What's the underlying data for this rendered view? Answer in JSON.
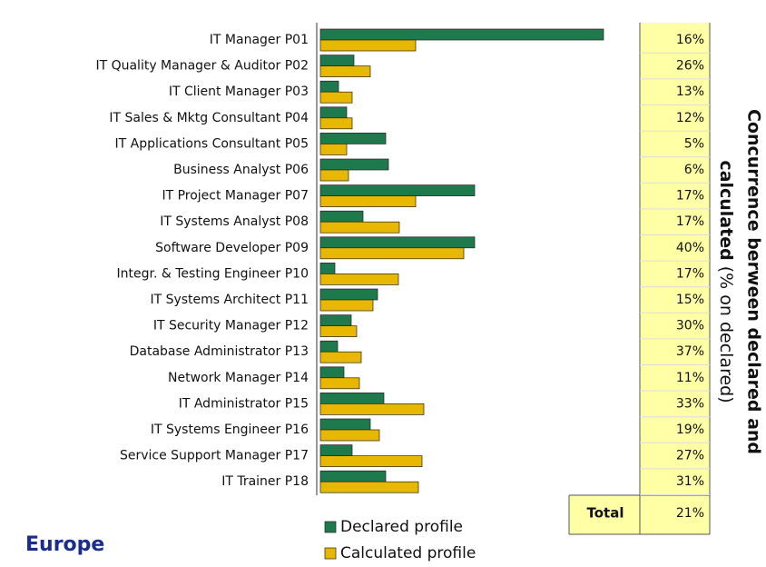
{
  "chart_data": {
    "type": "bar",
    "orientation": "horizontal",
    "categories": [
      "IT Manager P01",
      "IT Quality Manager & Auditor P02",
      "IT Client Manager P03",
      "IT Sales & Mktg Consultant P04",
      "IT Applications Consultant P05",
      "Business Analyst P06",
      "IT Project Manager P07",
      "IT Systems Analyst P08",
      "Software Developer P09",
      "Integr. & Testing Engineer P10",
      "IT Systems Architect P11",
      "IT Security Manager P12",
      "Database Administrator P13",
      "Network Manager P14",
      "IT Administrator P15",
      "IT Systems Engineer P16",
      "Service Support Manager P17",
      "IT Trainer P18"
    ],
    "series": [
      {
        "name": "Declared profile",
        "color": "#1e7a4c",
        "values": [
          312,
          37,
          20,
          29,
          72,
          75,
          170,
          47,
          170,
          16,
          63,
          34,
          19,
          26,
          70,
          55,
          35,
          72
        ]
      },
      {
        "name": "Calculated profile",
        "color": "#e8b800",
        "values": [
          105,
          55,
          35,
          35,
          29,
          31,
          105,
          87,
          158,
          86,
          58,
          40,
          45,
          43,
          114,
          65,
          112,
          108
        ]
      }
    ],
    "concurrence": {
      "values": [
        16,
        26,
        13,
        12,
        5,
        6,
        17,
        17,
        40,
        17,
        15,
        30,
        37,
        11,
        33,
        19,
        27,
        31
      ],
      "value_labels": [
        "16%",
        "26%",
        "13%",
        "12%",
        "5%",
        "6%",
        "17%",
        "17%",
        "40%",
        "17%",
        "15%",
        "30%",
        "37%",
        "11%",
        "33%",
        "19%",
        "27%",
        "31%"
      ]
    },
    "total": {
      "label": "Total",
      "value": 21,
      "value_label": "21%"
    },
    "title": {
      "line1": "Concurrence berween declared and",
      "line2_bold": "calculated",
      "line2_rest": "(% on declared)"
    },
    "region": "Europe"
  }
}
